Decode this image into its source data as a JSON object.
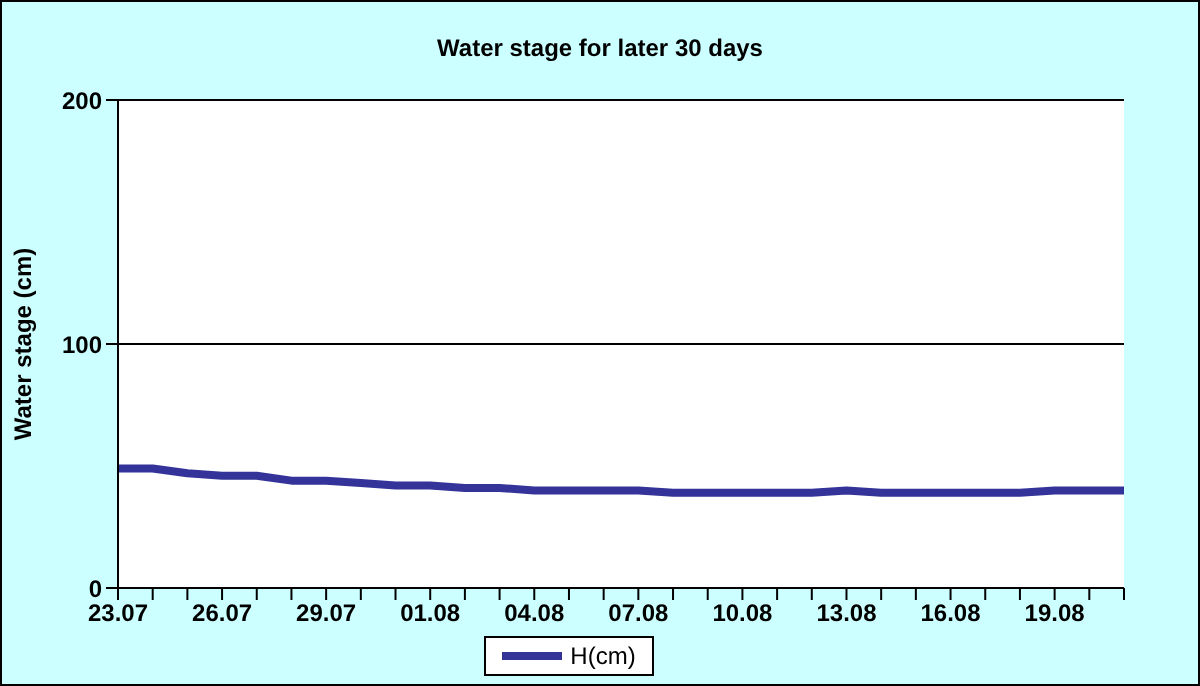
{
  "chart_data": {
    "type": "line",
    "title": "Water stage for later 30 days",
    "ylabel": "Water stage (cm)",
    "categories": [
      "23.07",
      null,
      null,
      "26.07",
      null,
      null,
      "29.07",
      null,
      null,
      "01.08",
      null,
      null,
      "04.08",
      null,
      null,
      "07.08",
      null,
      null,
      "10.08",
      null,
      null,
      "13.08",
      null,
      null,
      "16.08",
      null,
      null,
      "19.08",
      null,
      null
    ],
    "series": [
      {
        "name": "H(cm)",
        "color": "#333399",
        "values": [
          49,
          49,
          47,
          46,
          46,
          44,
          44,
          43,
          42,
          42,
          41,
          41,
          40,
          40,
          40,
          40,
          39,
          39,
          39,
          39,
          39,
          40,
          39,
          39,
          39,
          39,
          39,
          40,
          40,
          40
        ]
      }
    ],
    "ylim": [
      0,
      200
    ],
    "yticks": [
      0,
      100,
      200
    ],
    "grid": "y",
    "legend": "bottom",
    "marker": "none",
    "line_style": "solid"
  }
}
